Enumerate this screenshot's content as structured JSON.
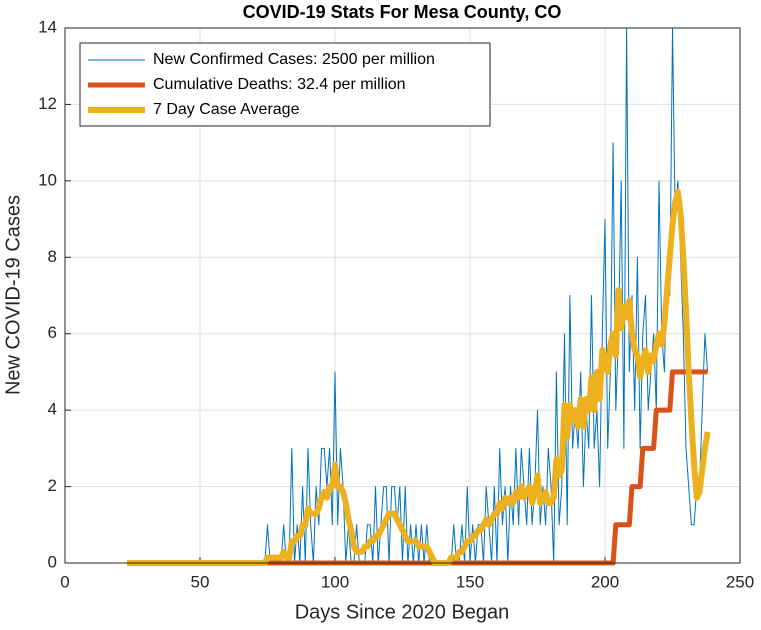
{
  "chart_data": {
    "type": "line",
    "title": "COVID-19 Stats For Mesa County, CO",
    "xlabel": "Days Since 2020 Began",
    "ylabel": "New COVID-19 Cases",
    "xlim": [
      0,
      250
    ],
    "xticks": [
      0,
      50,
      100,
      150,
      200,
      250
    ],
    "ylim": [
      0,
      14
    ],
    "yticks": [
      0,
      2,
      4,
      6,
      8,
      10,
      12,
      14
    ],
    "grid": true,
    "legend": "upper left",
    "x": [
      23,
      24,
      25,
      26,
      27,
      28,
      29,
      30,
      31,
      32,
      33,
      34,
      35,
      36,
      37,
      38,
      39,
      40,
      41,
      42,
      43,
      44,
      45,
      46,
      47,
      48,
      49,
      50,
      51,
      52,
      53,
      54,
      55,
      56,
      57,
      58,
      59,
      60,
      61,
      62,
      63,
      64,
      65,
      66,
      67,
      68,
      69,
      70,
      71,
      72,
      73,
      74,
      75,
      76,
      77,
      78,
      79,
      80,
      81,
      82,
      83,
      84,
      85,
      86,
      87,
      88,
      89,
      90,
      91,
      92,
      93,
      94,
      95,
      96,
      97,
      98,
      99,
      100,
      101,
      102,
      103,
      104,
      105,
      106,
      107,
      108,
      109,
      110,
      111,
      112,
      113,
      114,
      115,
      116,
      117,
      118,
      119,
      120,
      121,
      122,
      123,
      124,
      125,
      126,
      127,
      128,
      129,
      130,
      131,
      132,
      133,
      134,
      135,
      136,
      137,
      138,
      139,
      140,
      141,
      142,
      143,
      144,
      145,
      146,
      147,
      148,
      149,
      150,
      151,
      152,
      153,
      154,
      155,
      156,
      157,
      158,
      159,
      160,
      161,
      162,
      163,
      164,
      165,
      166,
      167,
      168,
      169,
      170,
      171,
      172,
      173,
      174,
      175,
      176,
      177,
      178,
      179,
      180,
      181,
      182,
      183,
      184,
      185,
      186,
      187,
      188,
      189,
      190,
      191,
      192,
      193,
      194,
      195,
      196,
      197,
      198,
      199,
      200,
      201,
      202,
      203,
      204,
      205,
      206,
      207,
      208,
      209,
      210,
      211,
      212,
      213,
      214,
      215,
      216,
      217,
      218,
      219,
      220,
      221,
      222,
      223,
      224,
      225,
      226,
      227,
      228,
      229,
      230,
      231,
      232,
      233,
      234,
      235,
      236,
      237,
      238
    ],
    "series": [
      {
        "name": "New Confirmed Cases: 2500 per million",
        "color": "#0072bd",
        "width": 1,
        "values": [
          0,
          0,
          0,
          0,
          0,
          0,
          0,
          0,
          0,
          0,
          0,
          0,
          0,
          0,
          0,
          0,
          0,
          0,
          0,
          0,
          0,
          0,
          0,
          0,
          0,
          0,
          0,
          0,
          0,
          0,
          0,
          0,
          0,
          0,
          0,
          0,
          0,
          0,
          0,
          0,
          0,
          0,
          0,
          0,
          0,
          0,
          0,
          0,
          0,
          0,
          0,
          0,
          1,
          0,
          0,
          0,
          0,
          0,
          1,
          0,
          0,
          3,
          0,
          1,
          0,
          2,
          0,
          3,
          1,
          0,
          2,
          1,
          3,
          3,
          2,
          3,
          1,
          5,
          1,
          3,
          2,
          0,
          1,
          0,
          0,
          1,
          0,
          0,
          0,
          1,
          1,
          0,
          2,
          0,
          1,
          2,
          2,
          0,
          2,
          2,
          1,
          2,
          0,
          2,
          0,
          1,
          0,
          1,
          0,
          1,
          0,
          1,
          0,
          0,
          0,
          0,
          0,
          0,
          0,
          0,
          0,
          1,
          0,
          0,
          1,
          0,
          2,
          0,
          1,
          0,
          1,
          1,
          0,
          2,
          1,
          0,
          2,
          0,
          3,
          1,
          2,
          0,
          2,
          1,
          3,
          1,
          3,
          2,
          1,
          3,
          1,
          2,
          4,
          1,
          2,
          1,
          3,
          2,
          0,
          5,
          1,
          2,
          6,
          1,
          7,
          3,
          4,
          3,
          5,
          2,
          4,
          3,
          7,
          3,
          4,
          2,
          6,
          9,
          3,
          5,
          11,
          4,
          6,
          10,
          3,
          14,
          5,
          7,
          4,
          8,
          3,
          6,
          7,
          4,
          5,
          6,
          4,
          10,
          6,
          5,
          8,
          7,
          14,
          9,
          10,
          8,
          6,
          3,
          2,
          1,
          1,
          2,
          2,
          4,
          6,
          5
        ]
      },
      {
        "name": "Cumulative Deaths: 32.4 per million",
        "color": "#d95319",
        "width": 5,
        "values": [
          0,
          0,
          0,
          0,
          0,
          0,
          0,
          0,
          0,
          0,
          0,
          0,
          0,
          0,
          0,
          0,
          0,
          0,
          0,
          0,
          0,
          0,
          0,
          0,
          0,
          0,
          0,
          0,
          0,
          0,
          0,
          0,
          0,
          0,
          0,
          0,
          0,
          0,
          0,
          0,
          0,
          0,
          0,
          0,
          0,
          0,
          0,
          0,
          0,
          0,
          0,
          0,
          0,
          0,
          0,
          0,
          0,
          0,
          0,
          0,
          0,
          0,
          0,
          0,
          0,
          0,
          0,
          0,
          0,
          0,
          0,
          0,
          0,
          0,
          0,
          0,
          0,
          0,
          0,
          0,
          0,
          0,
          0,
          0,
          0,
          0,
          0,
          0,
          0,
          0,
          0,
          0,
          0,
          0,
          0,
          0,
          0,
          0,
          0,
          0,
          0,
          0,
          0,
          0,
          0,
          0,
          0,
          0,
          0,
          0,
          0,
          0,
          0,
          0,
          0,
          0,
          0,
          0,
          0,
          0,
          0,
          0,
          0,
          0,
          0,
          0,
          0,
          0,
          0,
          0,
          0,
          0,
          0,
          0,
          0,
          0,
          0,
          0,
          0,
          0,
          0,
          0,
          0,
          0,
          0,
          0,
          0,
          0,
          0,
          0,
          0,
          0,
          0,
          0,
          0,
          0,
          0,
          0,
          0,
          0,
          0,
          0,
          0,
          0,
          0,
          0,
          0,
          0,
          0,
          0,
          0,
          0,
          0,
          0,
          0,
          0,
          0,
          0,
          0,
          0,
          0,
          1,
          1,
          1,
          1,
          1,
          1,
          2,
          2,
          2,
          2,
          3,
          3,
          3,
          3,
          3,
          4,
          4,
          4,
          4,
          4,
          4,
          5,
          5,
          5,
          5,
          5,
          5,
          5,
          5,
          5,
          5,
          5,
          5,
          5,
          5
        ]
      },
      {
        "name": "7 Day Case Average",
        "color": "#edb120",
        "width": 6,
        "values": [
          0,
          0,
          0,
          0,
          0,
          0,
          0,
          0,
          0,
          0,
          0,
          0,
          0,
          0,
          0,
          0,
          0,
          0,
          0,
          0,
          0,
          0,
          0,
          0,
          0,
          0,
          0,
          0,
          0,
          0,
          0,
          0,
          0,
          0,
          0,
          0,
          0,
          0,
          0,
          0,
          0,
          0,
          0,
          0,
          0,
          0,
          0,
          0,
          0,
          0,
          0,
          0,
          0.14,
          0.14,
          0.14,
          0.14,
          0.14,
          0.14,
          0.29,
          0.14,
          0.14,
          0.57,
          0.57,
          0.71,
          0.71,
          1,
          1,
          1.43,
          1.29,
          1.29,
          1.29,
          1.43,
          1.71,
          1.86,
          1.71,
          2,
          2,
          2.57,
          2,
          2,
          1.86,
          1.57,
          1.14,
          0.86,
          0.43,
          0.29,
          0.29,
          0.29,
          0.43,
          0.43,
          0.57,
          0.57,
          0.71,
          0.71,
          0.86,
          1,
          1.14,
          1.29,
          1.29,
          1.29,
          1.14,
          1,
          0.86,
          0.71,
          0.57,
          0.57,
          0.57,
          0.57,
          0.43,
          0.43,
          0.43,
          0.43,
          0.29,
          0.14,
          0,
          0,
          0,
          0,
          0,
          0,
          0.14,
          0.14,
          0.14,
          0.29,
          0.29,
          0.43,
          0.57,
          0.57,
          0.71,
          0.71,
          0.86,
          0.86,
          1,
          1.14,
          1,
          1.14,
          1.29,
          1.29,
          1.57,
          1.43,
          1.71,
          1.57,
          1.71,
          1.57,
          1.86,
          1.71,
          2,
          1.71,
          1.86,
          2,
          1.57,
          1.86,
          2.29,
          1.57,
          1.71,
          1.86,
          1.57,
          1.57,
          1.71,
          2.71,
          2.29,
          2.43,
          4.14,
          3.29,
          4.14,
          3.71,
          4,
          3.57,
          4.29,
          3.57,
          4.29,
          4,
          4.86,
          4,
          5,
          4.29,
          5.57,
          5.29,
          5,
          5.71,
          6,
          5.43,
          7.14,
          6.14,
          6.71,
          6.43,
          6.86,
          6,
          5.57,
          5.43,
          4.86,
          5.29,
          5.57,
          5,
          5.43,
          5.29,
          5.71,
          6,
          5.71,
          6.29,
          7.14,
          8,
          8.86,
          9.43,
          9.71,
          9.14,
          8,
          6.57,
          5,
          3.71,
          2.57,
          1.71,
          1.86,
          2.43,
          3,
          3.43
        ]
      }
    ]
  }
}
